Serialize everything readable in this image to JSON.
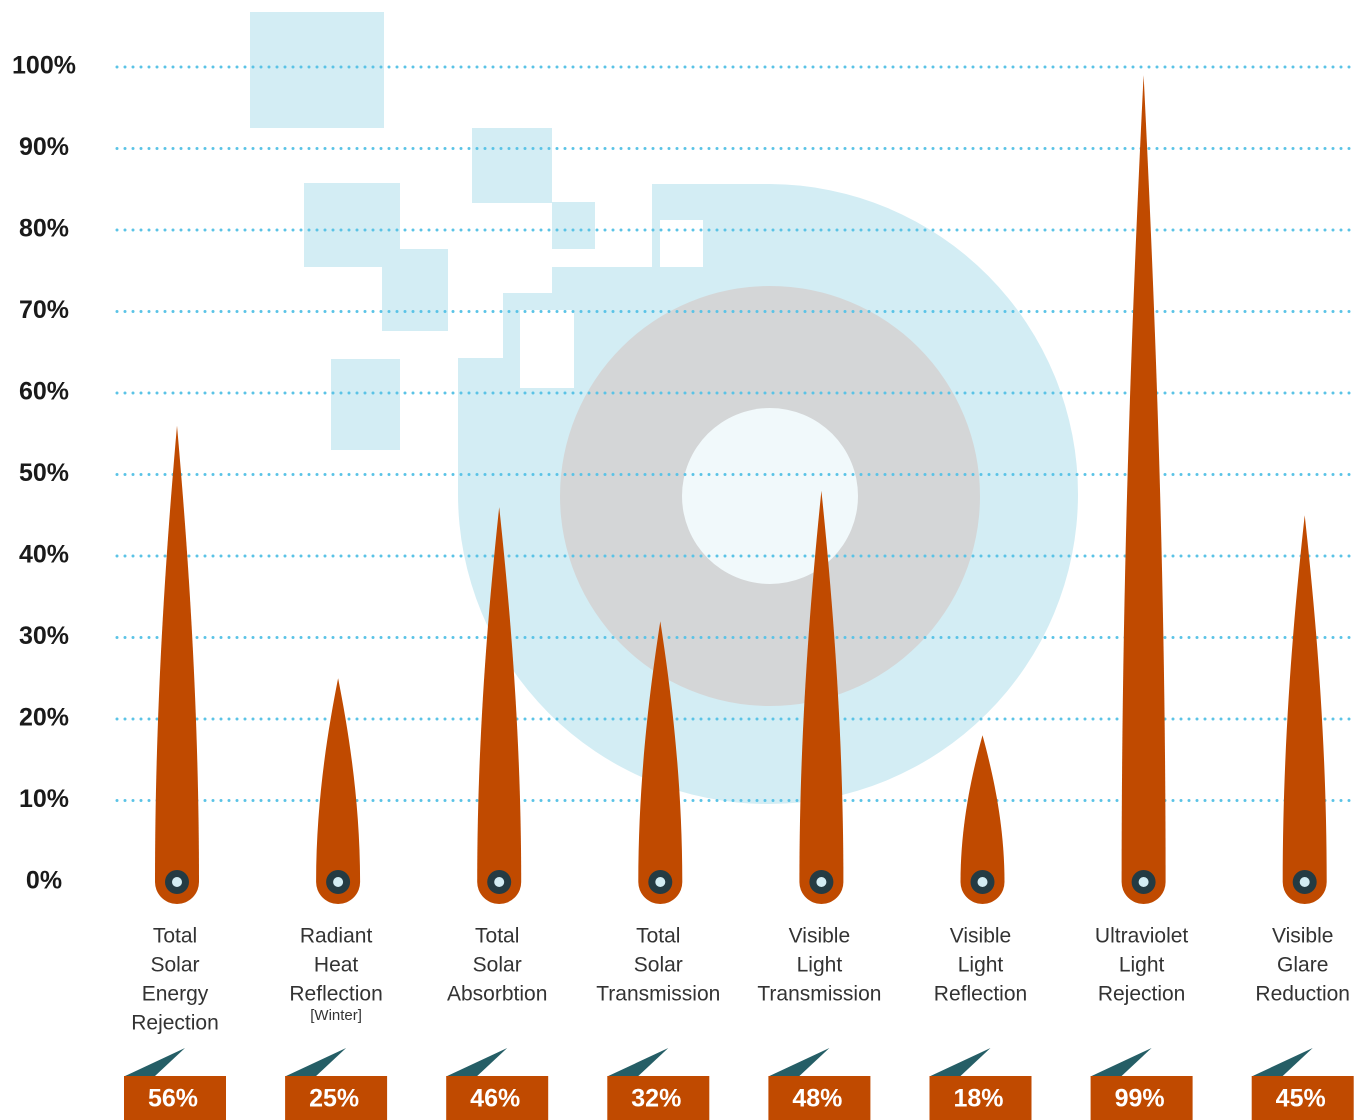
{
  "chart_data": {
    "type": "spike",
    "categories": [
      [
        "Total",
        "Solar",
        "Energy",
        "Rejection"
      ],
      [
        "Radiant",
        "Heat",
        "Reflection",
        "[Winter]"
      ],
      [
        "Total",
        "Solar",
        "Absorbtion"
      ],
      [
        "Total",
        "Solar",
        "Transmission"
      ],
      [
        "Visible",
        "Light",
        "Transmission"
      ],
      [
        "Visible",
        "Light",
        "Reflection"
      ],
      [
        "Ultraviolet",
        "Light",
        "Rejection"
      ],
      [
        "Visible",
        "Glare",
        "Reduction"
      ]
    ],
    "values": [
      56,
      25,
      46,
      32,
      48,
      18,
      99,
      45
    ],
    "value_labels": [
      "56%",
      "25%",
      "46%",
      "32%",
      "48%",
      "18%",
      "99%",
      "45%"
    ],
    "color": "#c04a00",
    "ylim": [
      0,
      100
    ],
    "yticks": [
      {
        "value": 0,
        "label": "0%"
      },
      {
        "value": 10,
        "label": "10%"
      },
      {
        "value": 20,
        "label": "20%"
      },
      {
        "value": 30,
        "label": "30%"
      },
      {
        "value": 40,
        "label": "40%"
      },
      {
        "value": 50,
        "label": "50%"
      },
      {
        "value": 60,
        "label": "60%"
      },
      {
        "value": 70,
        "label": "70%"
      },
      {
        "value": 80,
        "label": "80%"
      },
      {
        "value": 90,
        "label": "90%"
      },
      {
        "value": 100,
        "label": "100%"
      }
    ],
    "grid": true
  }
}
